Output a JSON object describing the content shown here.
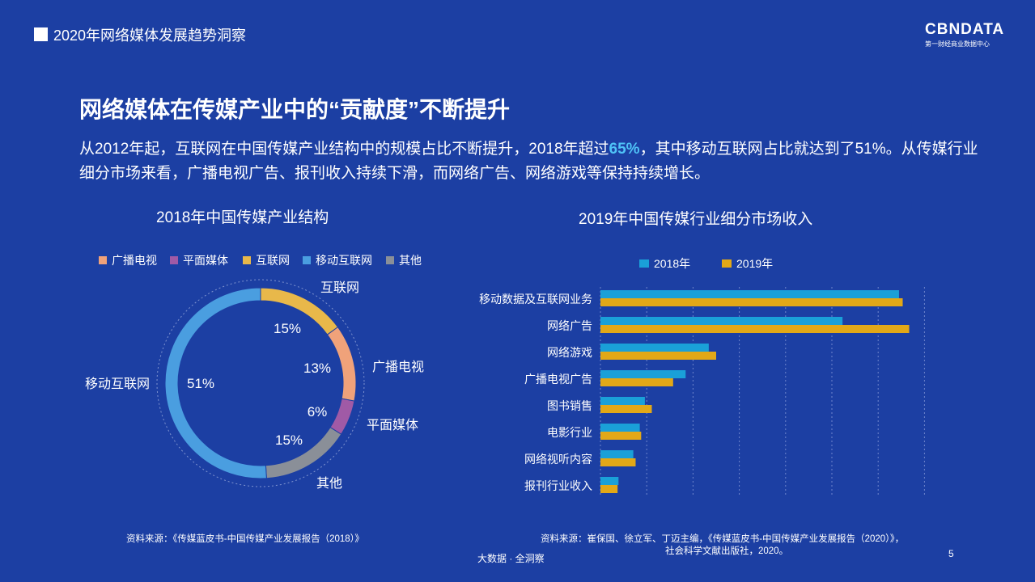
{
  "header": {
    "title": "2020年网络媒体发展趋势洞察",
    "logo": "CBNDATA",
    "logo_sub": "第一财经商业数据中心"
  },
  "main": {
    "title": "网络媒体在传媒产业中的“贡献度”不断提升",
    "para_1": "从2012年起，互联网在中国传媒产业结构中的规模占比不断提升，2018年超过",
    "para_highlight": "65%",
    "para_2": "，其中移动互联网占比就达到了51%。从传媒行业细分市场来看，广播电视广告、报刊收入持续下滑，而网络广告、网络游戏等保持持续增长。"
  },
  "colors": {
    "background": "#1c3fa3",
    "highlight": "#4fc3f7"
  },
  "chart_data": [
    {
      "type": "pie",
      "variant": "donut",
      "title": "2018年中国传媒产业结构",
      "legend": [
        "广播电视",
        "平面媒体",
        "互联网",
        "移动互联网",
        "其他"
      ],
      "slices": [
        {
          "name": "互联网",
          "value": 15,
          "label": "15%",
          "color": "#e8b84a"
        },
        {
          "name": "广播电视",
          "value": 13,
          "label": "13%",
          "color": "#f0a27a"
        },
        {
          "name": "平面媒体",
          "value": 6,
          "label": "6%",
          "color": "#a05aa6"
        },
        {
          "name": "其他",
          "value": 15,
          "label": "15%",
          "color": "#8a8f98"
        },
        {
          "name": "移动互联网",
          "value": 51,
          "label": "51%",
          "color": "#4a9ee0"
        }
      ]
    },
    {
      "type": "bar",
      "orientation": "horizontal",
      "title": "2019年中国传媒行业细分市场收入",
      "categories": [
        "移动数据及互联网业务",
        "网络广告",
        "网络游戏",
        "广播电视广告",
        "图书销售",
        "电影行业",
        "网络视听内容",
        "报刊行业收入"
      ],
      "series": [
        {
          "name": "2018年",
          "color": "#1aa0d8",
          "values": [
            6450,
            5230,
            2340,
            1840,
            960,
            850,
            710,
            390
          ]
        },
        {
          "name": "2019年",
          "color": "#e2a817",
          "values": [
            6530,
            6670,
            2500,
            1570,
            1110,
            880,
            760,
            370
          ]
        }
      ],
      "xlim": [
        0,
        7500
      ],
      "grid": true,
      "legend_position": "top"
    }
  ],
  "sources": {
    "left": "资料来源：《传媒蓝皮书-中国传媒产业发展报告（2018）》",
    "right_1": "资料来源：崔保国、徐立军、丁迈主编，《传媒蓝皮书-中国传媒产业发展报告（2020）》，",
    "right_2": "社会科学文献出版社，2020。"
  },
  "footer": {
    "text": "大数据 · 全洞察",
    "page": "5"
  }
}
